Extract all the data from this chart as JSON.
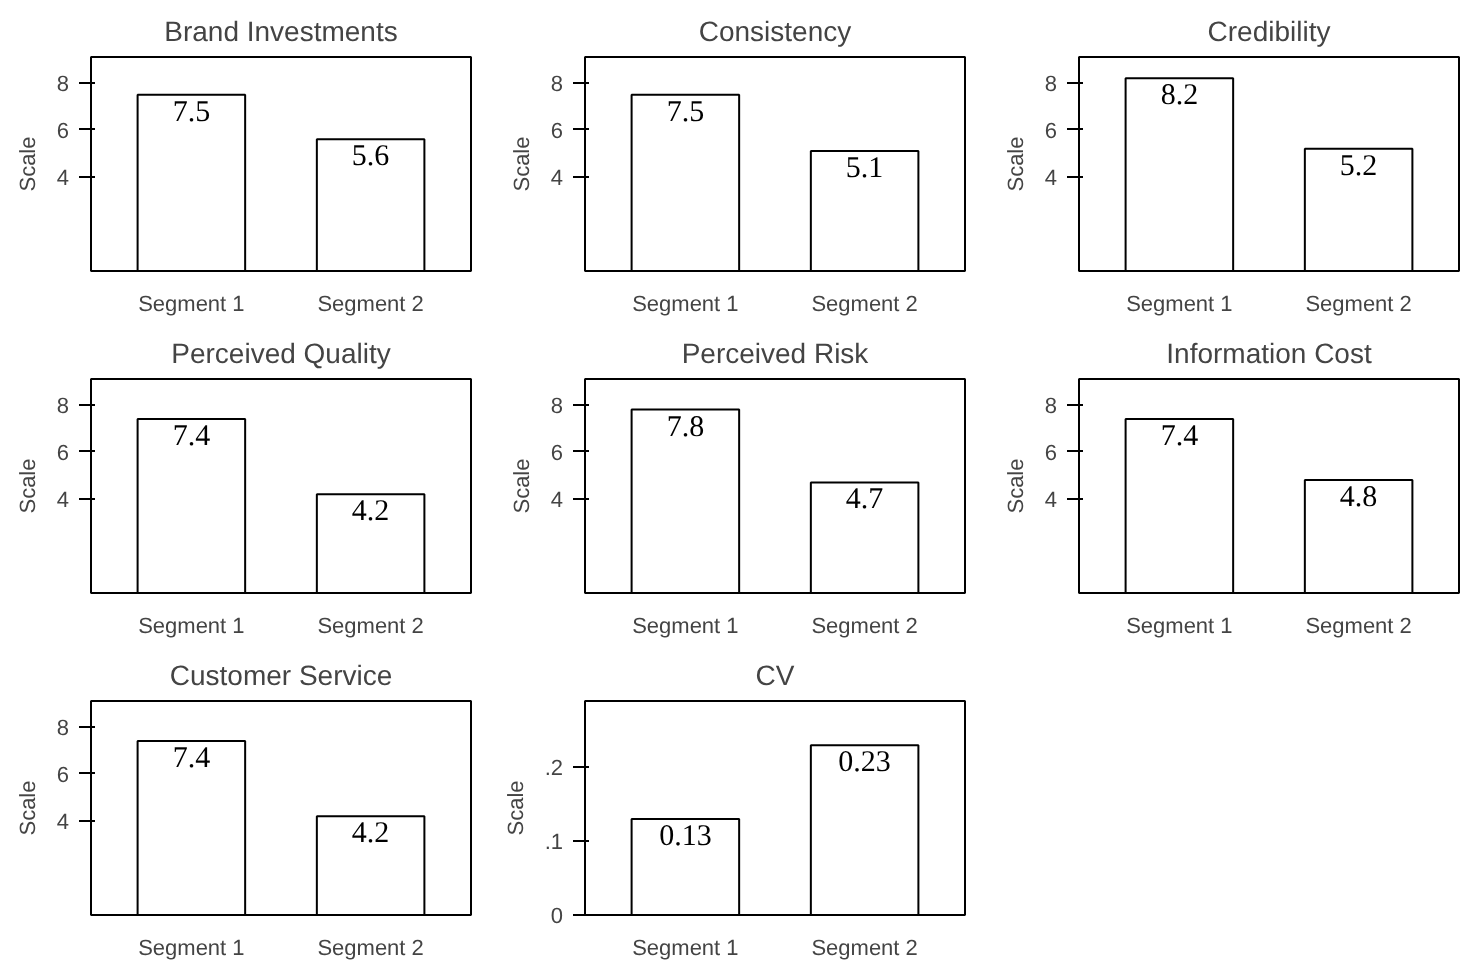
{
  "chart_data": [
    {
      "type": "bar",
      "title": "Brand Investments",
      "ylabel": "Scale",
      "categories": [
        "Segment 1",
        "Segment 2"
      ],
      "values": [
        7.5,
        5.6
      ],
      "color": "#ffffff",
      "ylim": [
        0,
        9.1
      ],
      "yticks": [
        4,
        6,
        8
      ],
      "data_labels": true
    },
    {
      "type": "bar",
      "title": "Consistency",
      "ylabel": "Scale",
      "categories": [
        "Segment 1",
        "Segment 2"
      ],
      "values": [
        7.5,
        5.1
      ],
      "color": "#ffffff",
      "ylim": [
        0,
        9.1
      ],
      "yticks": [
        4,
        6,
        8
      ],
      "data_labels": true
    },
    {
      "type": "bar",
      "title": "Credibility",
      "ylabel": "Scale",
      "categories": [
        "Segment 1",
        "Segment 2"
      ],
      "values": [
        8.2,
        5.2
      ],
      "color": "#ffffff",
      "ylim": [
        0,
        9.1
      ],
      "yticks": [
        4,
        6,
        8
      ],
      "data_labels": true
    },
    {
      "type": "bar",
      "title": "Perceived Quality",
      "ylabel": "Scale",
      "categories": [
        "Segment 1",
        "Segment 2"
      ],
      "values": [
        7.4,
        4.2
      ],
      "color": "#ffffff",
      "ylim": [
        0,
        9.1
      ],
      "yticks": [
        4,
        6,
        8
      ],
      "data_labels": true
    },
    {
      "type": "bar",
      "title": "Perceived Risk",
      "ylabel": "Scale",
      "categories": [
        "Segment 1",
        "Segment 2"
      ],
      "values": [
        7.8,
        4.7
      ],
      "color": "#ffffff",
      "ylim": [
        0,
        9.1
      ],
      "yticks": [
        4,
        6,
        8
      ],
      "data_labels": true
    },
    {
      "type": "bar",
      "title": "Information Cost",
      "ylabel": "Scale",
      "categories": [
        "Segment 1",
        "Segment 2"
      ],
      "values": [
        7.4,
        4.8
      ],
      "color": "#ffffff",
      "ylim": [
        0,
        9.1
      ],
      "yticks": [
        4,
        6,
        8
      ],
      "data_labels": true
    },
    {
      "type": "bar",
      "title": "Customer Service",
      "ylabel": "Scale",
      "categories": [
        "Segment 1",
        "Segment 2"
      ],
      "values": [
        7.4,
        4.2
      ],
      "color": "#ffffff",
      "ylim": [
        0,
        9.1
      ],
      "yticks": [
        4,
        6,
        8
      ],
      "data_labels": true
    },
    {
      "type": "bar",
      "title": "CV",
      "ylabel": "Scale",
      "categories": [
        "Segment 1",
        "Segment 2"
      ],
      "values": [
        0.13,
        0.23
      ],
      "color": "#ffffff",
      "ylim": [
        0,
        0.29
      ],
      "yticks": [
        0,
        {
          "value": 0.1,
          "label": ".1"
        },
        {
          "value": 0.2,
          "label": ".2"
        }
      ],
      "data_labels": true
    }
  ]
}
